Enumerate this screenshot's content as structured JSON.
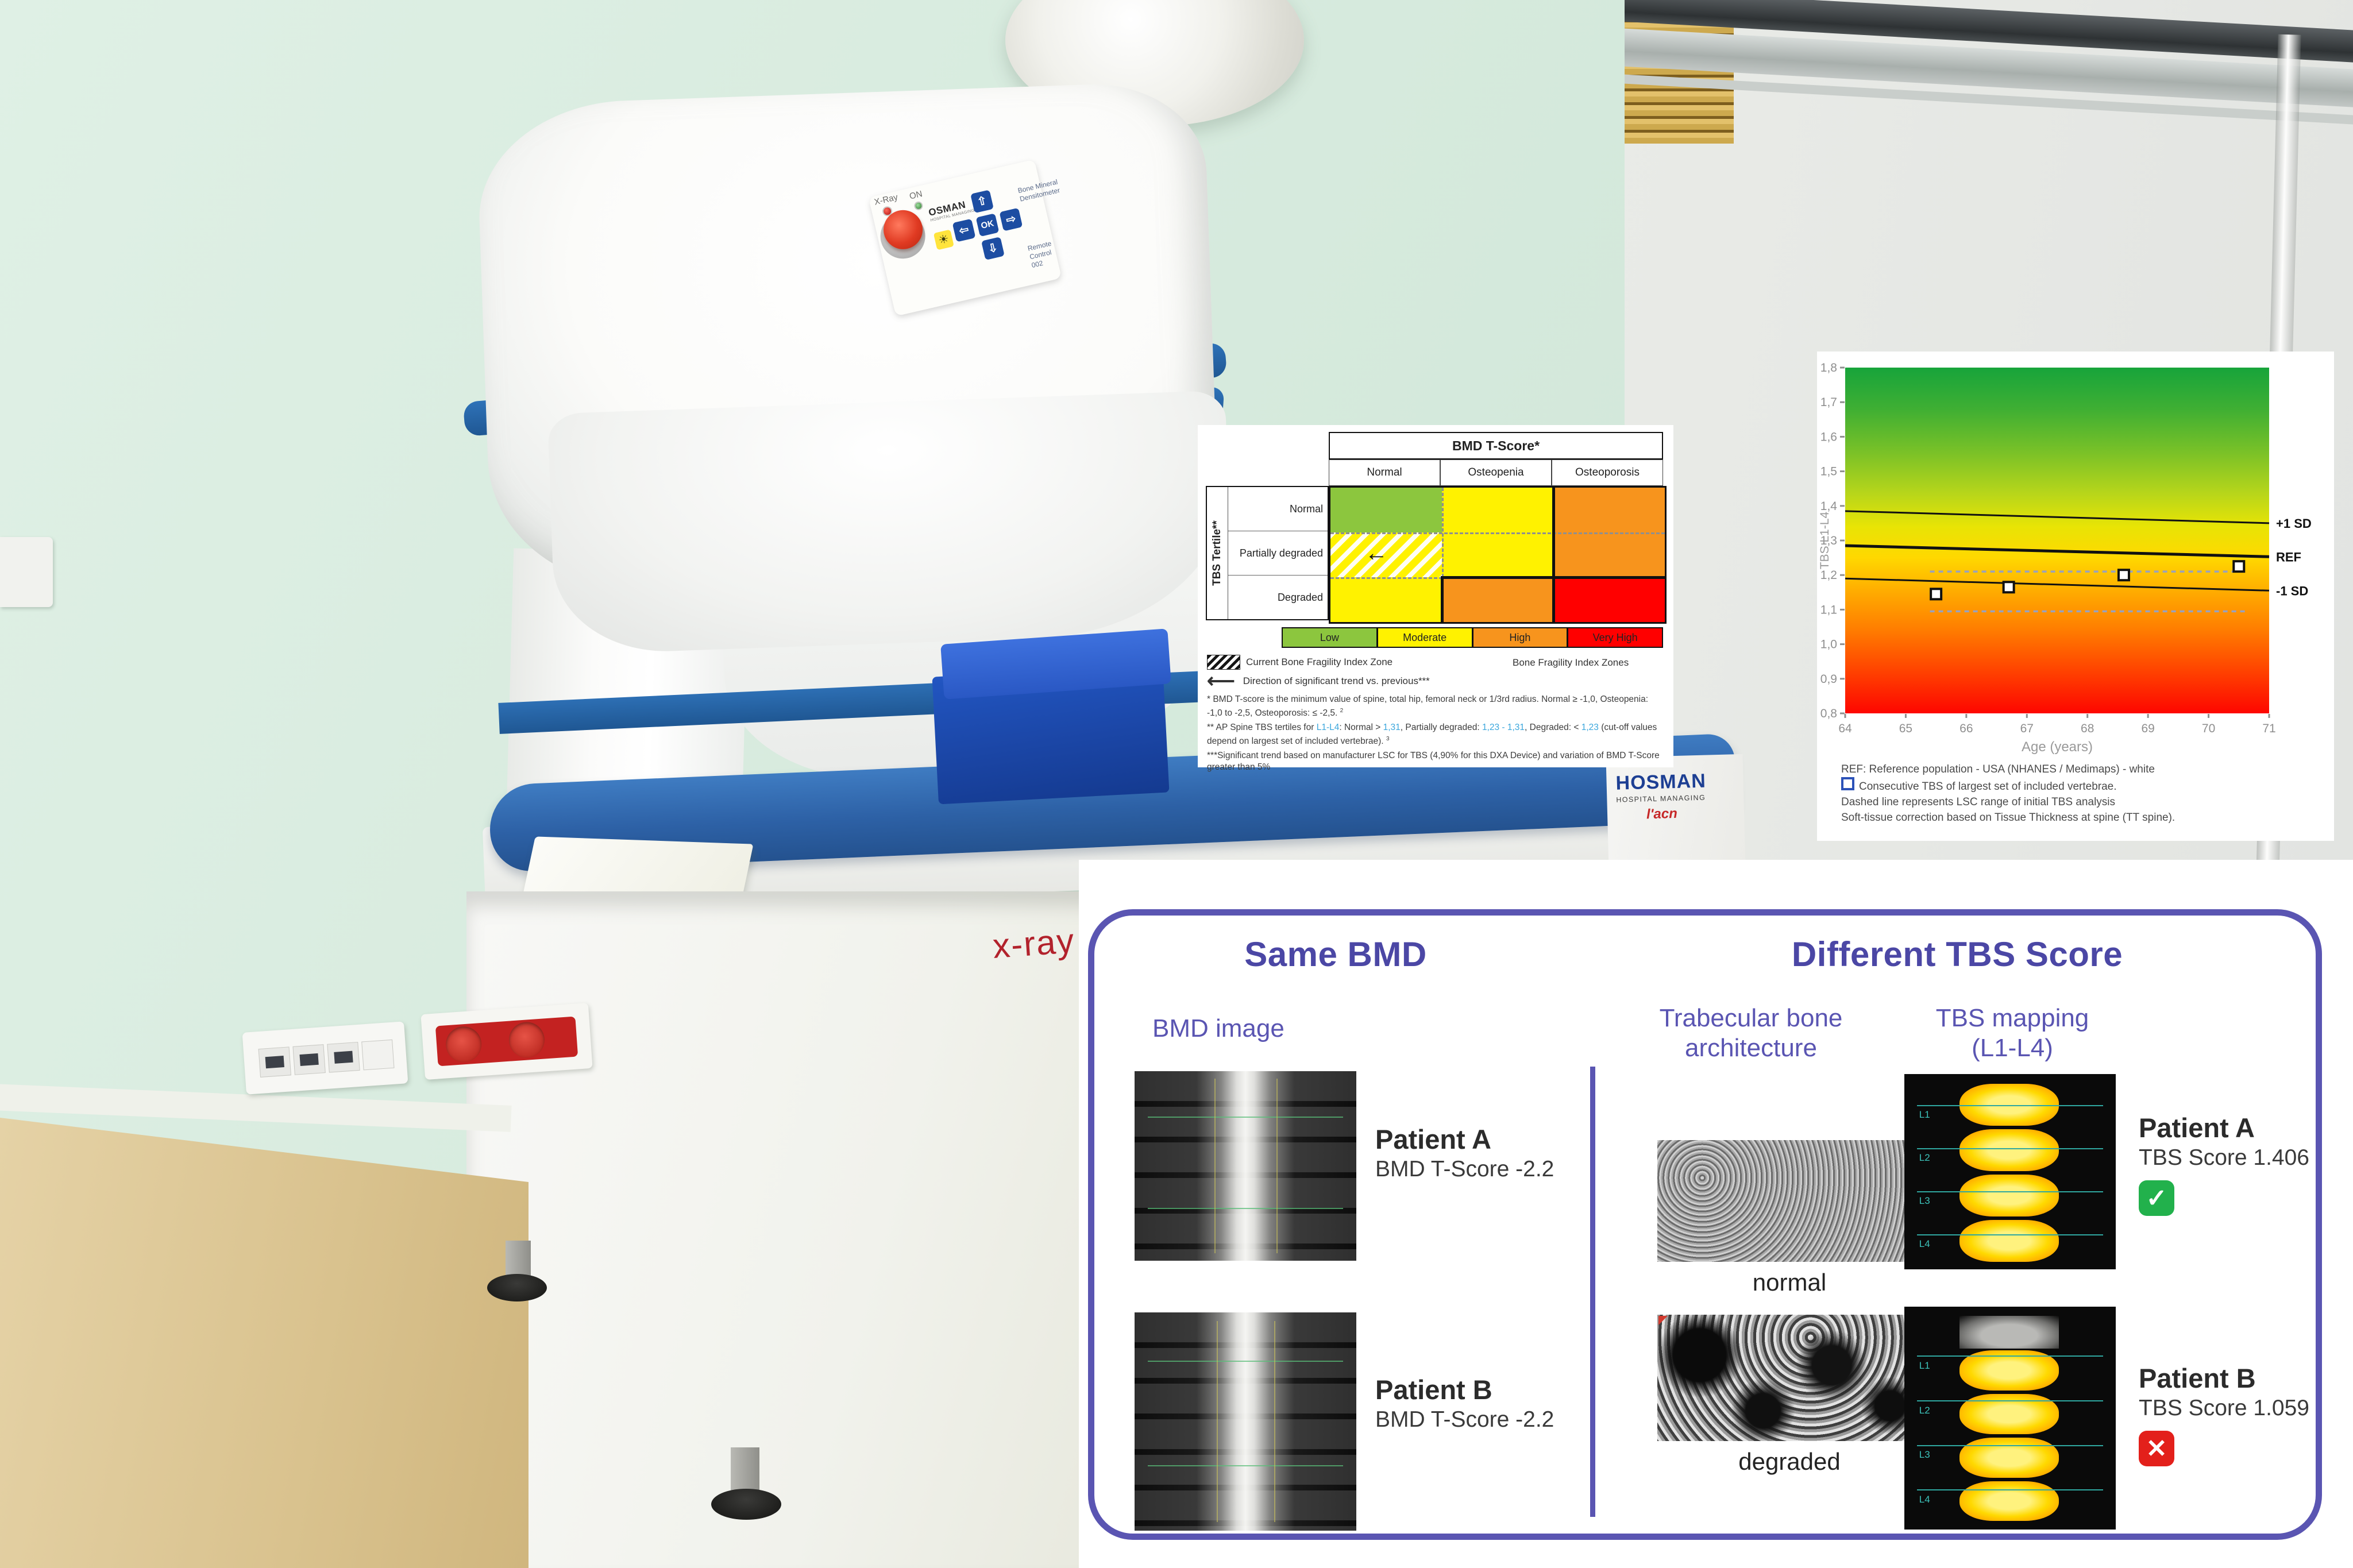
{
  "photo": {
    "machine_panel": {
      "xray_label": "X-Ray",
      "on_label": "ON",
      "brand": "OSMAN",
      "brand_sub": "HOSPITAL MANAGING",
      "ok_label": "OK",
      "right_text": "Bone Mineral Densitometer",
      "bottom_text": "Remote Control 002"
    },
    "side_text": "x-ray",
    "base_logo": {
      "brand": "HOSMAN",
      "sub": "HOSPITAL MANAGING",
      "acn": "l'acn"
    }
  },
  "bmd_panel": {
    "title": "BMD T-Score*",
    "col_headers": [
      "Normal",
      "Osteopenia",
      "Osteoporosis"
    ],
    "row_axis": "TBS Tertile**",
    "row_headers": [
      "Normal",
      "Partially degraded",
      "Degraded"
    ],
    "cells": [
      [
        "#8cc63e",
        "#fff200",
        "#f7941d"
      ],
      [
        "#fff200",
        "#fff200",
        "#f7941d"
      ],
      [
        "#fff200",
        "#f7941d",
        "#ff0000"
      ]
    ],
    "hatched_cell": "row 1 col 0 (Partially degraded / Normal) with left-arrow trend marker",
    "legend": [
      {
        "label": "Low",
        "color": "#8cc63e"
      },
      {
        "label": "Moderate",
        "color": "#fff200"
      },
      {
        "label": "High",
        "color": "#f7941d"
      },
      {
        "label": "Very High",
        "color": "#ff0000"
      }
    ],
    "legend_caption_left": "Current Bone Fragility Index Zone",
    "legend_caption_right": "Bone Fragility Index Zones",
    "arrow_caption": "Direction of significant trend vs. previous***",
    "footnote1": "* BMD T-score is the minimum value of spine, total hip, femoral neck or 1/3rd radius. Normal ≥ -1,0, Osteopenia: -1,0 to -2,5, Osteoporosis: ≤ -2,5.",
    "footnote1_sup": "2",
    "footnote2_seg1": "** AP Spine TBS tertiles for ",
    "footnote2_blue1": "L1-L4",
    "footnote2_seg2": ": Normal > ",
    "footnote2_blue2": "1,31",
    "footnote2_seg3": ", Partially degraded: ",
    "footnote2_blue3": "1,23 - 1,31",
    "footnote2_seg4": ", Degraded: < ",
    "footnote2_blue4": "1,23",
    "footnote2_seg5": " (cut-off values depend on largest set of included vertebrae).",
    "footnote2_sup": "3",
    "footnote3": "***Significant trend based on manufacturer LSC for TBS (4,90% for this DXA Device) and variation of BMD T-Score greater than 5%"
  },
  "chart_data": {
    "type": "scatter",
    "title": "",
    "xlabel": "Age (years)",
    "ylabel": "TBS L1-L4",
    "xlim": [
      64,
      71
    ],
    "ylim": [
      0.8,
      1.8
    ],
    "xticks": [
      64,
      65,
      66,
      67,
      68,
      69,
      70,
      71
    ],
    "yticks": [
      0.8,
      0.9,
      1.0,
      1.1,
      1.2,
      1.3,
      1.4,
      1.5,
      1.6,
      1.7,
      1.8
    ],
    "decimal_comma": true,
    "grid": false,
    "legend_position": "right-edge line labels",
    "points": [
      [
        65.5,
        1.145
      ],
      [
        66.7,
        1.165
      ],
      [
        68.6,
        1.2
      ],
      [
        70.5,
        1.225
      ]
    ],
    "ref_lines": [
      {
        "label": "+1 SD",
        "y_start": 1.385,
        "y_end": 1.35,
        "width": 3
      },
      {
        "label": "REF",
        "y_start": 1.285,
        "y_end": 1.253,
        "width": 5
      },
      {
        "label": "-1 SD",
        "y_start": 1.19,
        "y_end": 1.155,
        "width": 3
      }
    ],
    "dashed_lines": [
      {
        "y": 1.21,
        "x_start": 65.4,
        "x_end": 70.6
      },
      {
        "y": 1.095,
        "x_start": 65.4,
        "x_end": 70.6
      }
    ],
    "gradient_stops": [
      {
        "offset": 0,
        "color": "#17a43b"
      },
      {
        "offset": 12,
        "color": "#3faf33"
      },
      {
        "offset": 25,
        "color": "#7cc227"
      },
      {
        "offset": 36,
        "color": "#b5d51b"
      },
      {
        "offset": 46,
        "color": "#e8e405"
      },
      {
        "offset": 55,
        "color": "#ffd800"
      },
      {
        "offset": 65,
        "color": "#ffab00"
      },
      {
        "offset": 76,
        "color": "#ff7c00"
      },
      {
        "offset": 87,
        "color": "#ff4600"
      },
      {
        "offset": 100,
        "color": "#fe0600"
      }
    ]
  },
  "chart_panel": {
    "footnote_ref": "REF: Reference population - USA (NHANES / Medimaps) - white",
    "footnote_marker": "Consecutive TBS of largest set of included vertebrae.",
    "footnote_dashed": "Dashed line represents LSC range of initial TBS analysis",
    "footnote_soft": "Soft-tissue correction based on Tissue Thickness at spine (TT spine)."
  },
  "tbs_panel": {
    "left_title": "Same BMD",
    "right_title": "Different TBS Score",
    "bmd_image_label": "BMD image",
    "trab_header_line1": "Trabecular bone",
    "trab_header_line2": "architecture",
    "map_header_line1": "TBS mapping",
    "map_header_line2": "(L1-L4)",
    "normal_label": "normal",
    "degraded_label": "degraded",
    "map_labels": [
      "L1",
      "L2",
      "L3",
      "L4"
    ],
    "status_good_color": "#22b14c",
    "status_bad_color": "#e3201b",
    "check_glyph": "✓",
    "cross_glyph": "✕",
    "patients": {
      "a": {
        "name": "Patient A",
        "bmd": "BMD T-Score -2.2",
        "tbs": "TBS Score 1.406"
      },
      "b": {
        "name": "Patient B",
        "bmd": "BMD T-Score -2.2",
        "tbs": "TBS Score 1.059"
      }
    }
  }
}
